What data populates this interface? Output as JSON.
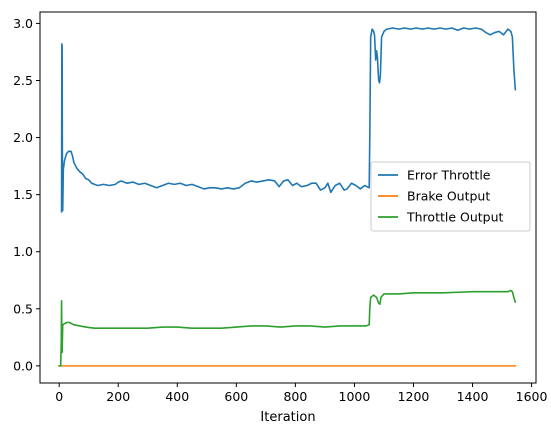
{
  "chart_data": {
    "type": "line",
    "title": "",
    "xlabel": "Iteration",
    "ylabel": "",
    "xlim": [
      -65,
      1615
    ],
    "ylim": [
      -0.15,
      3.1
    ],
    "xticks": [
      0,
      200,
      400,
      600,
      800,
      1000,
      1200,
      1400,
      1600
    ],
    "yticks": [
      0.0,
      0.5,
      1.0,
      1.5,
      2.0,
      2.5,
      3.0
    ],
    "xtick_labels": [
      "0",
      "200",
      "400",
      "600",
      "800",
      "1000",
      "1200",
      "1400",
      "1600"
    ],
    "ytick_labels": [
      "0.0",
      "0.5",
      "1.0",
      "1.5",
      "2.0",
      "2.5",
      "3.0"
    ],
    "grid": false,
    "legend_position": "center-right",
    "series": [
      {
        "name": "Error Throttle",
        "color": "#1f77b4",
        "points": [
          [
            8,
            1.35
          ],
          [
            9,
            2.82
          ],
          [
            10,
            2.8
          ],
          [
            11,
            1.5
          ],
          [
            12,
            1.36
          ],
          [
            14,
            1.72
          ],
          [
            18,
            1.8
          ],
          [
            25,
            1.86
          ],
          [
            32,
            1.88
          ],
          [
            40,
            1.88
          ],
          [
            45,
            1.84
          ],
          [
            50,
            1.78
          ],
          [
            60,
            1.73
          ],
          [
            70,
            1.7
          ],
          [
            80,
            1.68
          ],
          [
            90,
            1.64
          ],
          [
            100,
            1.63
          ],
          [
            110,
            1.6
          ],
          [
            130,
            1.58
          ],
          [
            150,
            1.59
          ],
          [
            170,
            1.58
          ],
          [
            190,
            1.59
          ],
          [
            200,
            1.61
          ],
          [
            210,
            1.62
          ],
          [
            230,
            1.6
          ],
          [
            250,
            1.61
          ],
          [
            270,
            1.59
          ],
          [
            290,
            1.6
          ],
          [
            310,
            1.58
          ],
          [
            330,
            1.56
          ],
          [
            350,
            1.58
          ],
          [
            370,
            1.6
          ],
          [
            390,
            1.59
          ],
          [
            410,
            1.6
          ],
          [
            430,
            1.58
          ],
          [
            450,
            1.59
          ],
          [
            470,
            1.57
          ],
          [
            490,
            1.55
          ],
          [
            510,
            1.56
          ],
          [
            530,
            1.56
          ],
          [
            550,
            1.55
          ],
          [
            570,
            1.56
          ],
          [
            590,
            1.55
          ],
          [
            610,
            1.56
          ],
          [
            630,
            1.6
          ],
          [
            650,
            1.62
          ],
          [
            670,
            1.61
          ],
          [
            690,
            1.62
          ],
          [
            710,
            1.63
          ],
          [
            730,
            1.62
          ],
          [
            745,
            1.57
          ],
          [
            760,
            1.62
          ],
          [
            775,
            1.63
          ],
          [
            790,
            1.58
          ],
          [
            805,
            1.6
          ],
          [
            820,
            1.57
          ],
          [
            840,
            1.58
          ],
          [
            855,
            1.6
          ],
          [
            870,
            1.6
          ],
          [
            885,
            1.54
          ],
          [
            900,
            1.56
          ],
          [
            910,
            1.6
          ],
          [
            920,
            1.52
          ],
          [
            935,
            1.58
          ],
          [
            950,
            1.6
          ],
          [
            965,
            1.54
          ],
          [
            975,
            1.55
          ],
          [
            990,
            1.6
          ],
          [
            1005,
            1.58
          ],
          [
            1020,
            1.55
          ],
          [
            1035,
            1.58
          ],
          [
            1050,
            1.56
          ],
          [
            1052,
            2.0
          ],
          [
            1055,
            2.88
          ],
          [
            1060,
            2.95
          ],
          [
            1065,
            2.93
          ],
          [
            1068,
            2.9
          ],
          [
            1072,
            2.68
          ],
          [
            1075,
            2.76
          ],
          [
            1078,
            2.7
          ],
          [
            1082,
            2.5
          ],
          [
            1085,
            2.48
          ],
          [
            1088,
            2.55
          ],
          [
            1092,
            2.88
          ],
          [
            1100,
            2.93
          ],
          [
            1110,
            2.95
          ],
          [
            1130,
            2.96
          ],
          [
            1150,
            2.95
          ],
          [
            1170,
            2.96
          ],
          [
            1190,
            2.95
          ],
          [
            1210,
            2.96
          ],
          [
            1230,
            2.95
          ],
          [
            1250,
            2.96
          ],
          [
            1270,
            2.95
          ],
          [
            1290,
            2.96
          ],
          [
            1310,
            2.95
          ],
          [
            1330,
            2.96
          ],
          [
            1350,
            2.94
          ],
          [
            1370,
            2.96
          ],
          [
            1390,
            2.95
          ],
          [
            1410,
            2.96
          ],
          [
            1430,
            2.95
          ],
          [
            1445,
            2.92
          ],
          [
            1460,
            2.9
          ],
          [
            1475,
            2.92
          ],
          [
            1490,
            2.93
          ],
          [
            1505,
            2.9
          ],
          [
            1520,
            2.95
          ],
          [
            1530,
            2.93
          ],
          [
            1535,
            2.88
          ],
          [
            1540,
            2.6
          ],
          [
            1545,
            2.42
          ]
        ]
      },
      {
        "name": "Brake Output",
        "color": "#ff7f0e",
        "points": [
          [
            0,
            0.0
          ],
          [
            1545,
            0.0
          ]
        ]
      },
      {
        "name": "Throttle Output",
        "color": "#2ca02c",
        "points": [
          [
            0,
            0.0
          ],
          [
            5,
            0.0
          ],
          [
            7,
            0.2
          ],
          [
            8,
            0.57
          ],
          [
            9,
            0.25
          ],
          [
            10,
            0.12
          ],
          [
            12,
            0.36
          ],
          [
            18,
            0.37
          ],
          [
            25,
            0.38
          ],
          [
            35,
            0.38
          ],
          [
            50,
            0.36
          ],
          [
            70,
            0.35
          ],
          [
            90,
            0.34
          ],
          [
            120,
            0.33
          ],
          [
            150,
            0.33
          ],
          [
            200,
            0.33
          ],
          [
            250,
            0.33
          ],
          [
            300,
            0.33
          ],
          [
            350,
            0.34
          ],
          [
            400,
            0.34
          ],
          [
            450,
            0.33
          ],
          [
            500,
            0.33
          ],
          [
            550,
            0.33
          ],
          [
            600,
            0.34
          ],
          [
            650,
            0.35
          ],
          [
            700,
            0.35
          ],
          [
            750,
            0.34
          ],
          [
            800,
            0.35
          ],
          [
            850,
            0.35
          ],
          [
            900,
            0.34
          ],
          [
            950,
            0.35
          ],
          [
            1000,
            0.35
          ],
          [
            1040,
            0.35
          ],
          [
            1050,
            0.36
          ],
          [
            1052,
            0.5
          ],
          [
            1055,
            0.6
          ],
          [
            1065,
            0.62
          ],
          [
            1075,
            0.6
          ],
          [
            1082,
            0.55
          ],
          [
            1086,
            0.54
          ],
          [
            1090,
            0.6
          ],
          [
            1100,
            0.63
          ],
          [
            1150,
            0.63
          ],
          [
            1200,
            0.64
          ],
          [
            1250,
            0.64
          ],
          [
            1300,
            0.64
          ],
          [
            1350,
            0.645
          ],
          [
            1400,
            0.65
          ],
          [
            1450,
            0.65
          ],
          [
            1500,
            0.65
          ],
          [
            1520,
            0.65
          ],
          [
            1530,
            0.66
          ],
          [
            1535,
            0.65
          ],
          [
            1540,
            0.6
          ],
          [
            1545,
            0.56
          ]
        ]
      }
    ]
  }
}
